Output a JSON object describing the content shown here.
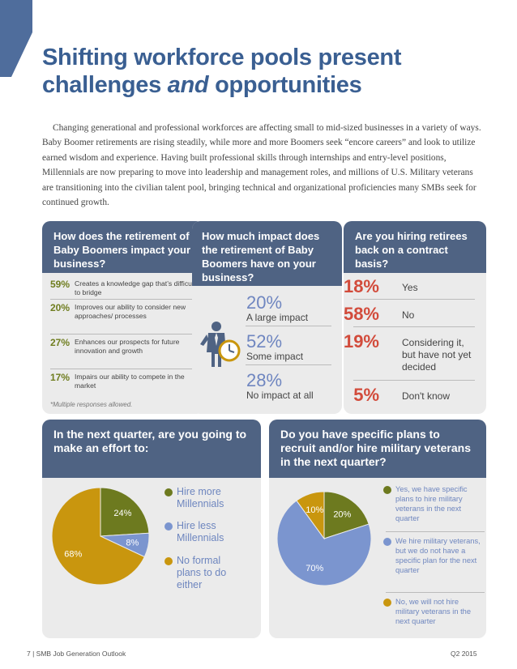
{
  "title": {
    "part1": "Shifting workforce pools present",
    "part2": "challenges ",
    "italic": "and",
    "part3": " opportunities"
  },
  "intro": "Changing generational and professional workforces are affecting small to mid-sized businesses in a variety of ways. Baby Boomer retirements are rising steadily, while more and more Boomers seek “encore careers” and look to utilize earned wisdom and experience. Having built professional skills through internships and entry-level positions, Millennials are now preparing to move into leadership and management roles, and millions of U.S. Military veterans are transitioning into the civilian talent pool, bringing technical and organizational proficiencies many SMBs seek for continued growth.",
  "card1": {
    "question": "How does the retirement of Baby Boomers impact your business?",
    "items": [
      {
        "pct": "59%",
        "text": "Creates a knowledge gap that’s difficult to bridge"
      },
      {
        "pct": "20%",
        "text": "Improves our ability to consider new approaches/ processes"
      },
      {
        "pct": "27%",
        "text": "Enhances our prospects for future innovation and growth"
      },
      {
        "pct": "17%",
        "text": "Impairs our ability to compete in the market"
      }
    ],
    "note": "*Multiple responses allowed."
  },
  "card2": {
    "question": "How much impact does the retirement of Baby Boomers have on your business?",
    "items": [
      {
        "pct": "20%",
        "label": "A large impact"
      },
      {
        "pct": "52%",
        "label": "Some impact"
      },
      {
        "pct": "28%",
        "label": "No impact at all"
      }
    ]
  },
  "card3": {
    "question": "Are you hiring retirees back on a contract basis?",
    "items": [
      {
        "pct": "18%",
        "label": "Yes"
      },
      {
        "pct": "58%",
        "label": "No"
      },
      {
        "pct": "19%",
        "label": "Considering it, but have not yet decided"
      },
      {
        "pct": "5%",
        "label": "Don't know"
      }
    ]
  },
  "card4": {
    "question": "In the next quarter, are you going to make an effort to:",
    "legend": [
      "Hire more Millennials",
      "Hire less Millennials",
      "No formal plans to do either"
    ],
    "chart_data": {
      "type": "pie",
      "categories": [
        "Hire more Millennials",
        "Hire less Millennials",
        "No formal plans to do either"
      ],
      "values": [
        24,
        8,
        68
      ],
      "labels": [
        "24%",
        "8%",
        "68%"
      ],
      "colors": [
        "#6d7a1f",
        "#7b95cf",
        "#c9960e"
      ]
    }
  },
  "card5": {
    "question": "Do you have specific plans to recruit and/or hire military veterans in the next quarter?",
    "legend": [
      "Yes, we have specific plans to hire military veterans in the next quarter",
      "We hire military veterans, but we do not have a specific plan for the next quarter",
      "No, we will not hire military veterans in the next quarter"
    ],
    "chart_data": {
      "type": "pie",
      "categories": [
        "Yes, specific plans",
        "Hire veterans, no specific plan",
        "Will not hire veterans"
      ],
      "values": [
        20,
        70,
        10
      ],
      "labels": [
        "20%",
        "70%",
        "10%"
      ],
      "colors": [
        "#6d7a1f",
        "#7b95cf",
        "#c9960e"
      ]
    }
  },
  "footer": {
    "left": "7  |  SMB Job Generation Outlook",
    "right": "Q2  2015"
  }
}
